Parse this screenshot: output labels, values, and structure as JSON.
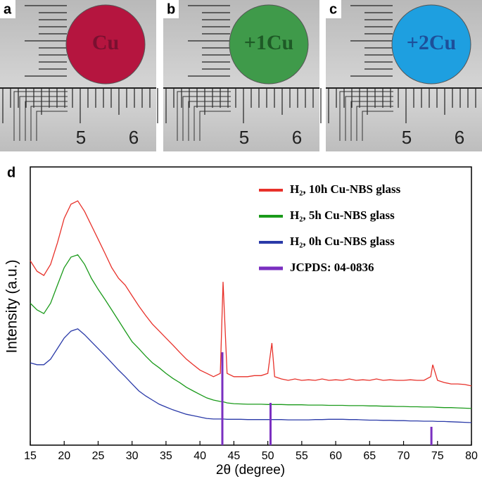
{
  "photos": [
    {
      "label": "a",
      "sample": "Cu",
      "ruler": [
        "5",
        "6"
      ],
      "color": "#b5153f",
      "text_color": "#7a1030"
    },
    {
      "label": "b",
      "sample": "+1Cu",
      "ruler": [
        "5",
        "6"
      ],
      "color": "#3f9a4a",
      "text_color": "#1e5a26"
    },
    {
      "label": "c",
      "sample": "+2Cu",
      "ruler": [
        "5",
        "6"
      ],
      "color": "#1e9fe0",
      "text_color": "#1d4f9a"
    }
  ],
  "chart_data": {
    "type": "line",
    "panel_label": "d",
    "xlabel": "2θ (degree)",
    "ylabel": "Intensity (a.u.)",
    "x": [
      15,
      16,
      17,
      18,
      19,
      20,
      21,
      22,
      23,
      24,
      25,
      26,
      27,
      28,
      29,
      30,
      31,
      32,
      33,
      34,
      35,
      36,
      37,
      38,
      39,
      40,
      41,
      42,
      43,
      43.4,
      44,
      45,
      46,
      47,
      48,
      49,
      50,
      50.6,
      51,
      52,
      53,
      54,
      55,
      56,
      57,
      58,
      59,
      60,
      61,
      62,
      63,
      64,
      65,
      66,
      67,
      68,
      69,
      70,
      71,
      72,
      73,
      74,
      74.3,
      75,
      76,
      77,
      78,
      79,
      80
    ],
    "series": [
      {
        "name": "H₂, 10h Cu-NBS glass",
        "color": "#e8312a",
        "values": [
          66.3,
          62.5,
          61,
          65,
          72.7,
          81.5,
          86.6,
          87.8,
          84,
          79,
          74,
          69,
          63.8,
          60,
          57.5,
          53.7,
          50,
          46.6,
          43.5,
          41,
          38.5,
          36,
          33.4,
          30.9,
          28.9,
          27,
          25.8,
          24.6,
          25.8,
          58.7,
          25.8,
          24.6,
          24.6,
          24.6,
          25,
          25,
          25.8,
          36.7,
          24.6,
          23.8,
          23.3,
          23.8,
          23.3,
          23.5,
          23.3,
          23.8,
          23.3,
          23.5,
          23.3,
          23.8,
          23.3,
          23.5,
          23.3,
          23.8,
          23.3,
          23.5,
          23.3,
          23.3,
          23.5,
          23.3,
          23.3,
          24.6,
          28.9,
          23.3,
          22.5,
          22,
          22,
          21.8,
          21.3
        ]
      },
      {
        "name": "H₂, 5h Cu-NBS glass",
        "color": "#1a9a1a",
        "values": [
          51,
          48.6,
          47.3,
          51,
          57.5,
          63.8,
          67.6,
          68.4,
          65,
          60,
          56,
          52.4,
          48.6,
          44.8,
          41,
          37.2,
          34.7,
          32,
          29.6,
          27.8,
          25.8,
          24,
          22.5,
          20.8,
          19.5,
          18.2,
          17,
          16.2,
          15.7,
          15.6,
          15.2,
          14.9,
          14.8,
          14.7,
          14.7,
          14.7,
          14.6,
          14.6,
          14.6,
          14.6,
          14.5,
          14.5,
          14.5,
          14.4,
          14.4,
          14.4,
          14.3,
          14.3,
          14.3,
          14.2,
          14.2,
          14.2,
          14.1,
          14.1,
          14,
          14,
          13.9,
          13.9,
          13.8,
          13.8,
          13.7,
          13.7,
          13.7,
          13.6,
          13.5,
          13.5,
          13.4,
          13.3,
          13.2
        ]
      },
      {
        "name": "H₂, 0h Cu-NBS glass",
        "color": "#2a3aa8",
        "values": [
          29.6,
          28.9,
          28.9,
          30.9,
          34.7,
          38.5,
          41,
          41.8,
          39.7,
          37.2,
          34.7,
          32.2,
          29.6,
          27,
          24.6,
          22,
          19.5,
          17.7,
          16.2,
          14.7,
          13.7,
          12.7,
          11.9,
          11.1,
          10.6,
          10.1,
          9.6,
          9.4,
          9.4,
          9.4,
          9.3,
          9.3,
          9.3,
          9.2,
          9.2,
          9.2,
          9.2,
          9.2,
          9.2,
          9.2,
          9.1,
          9.1,
          9.1,
          9.1,
          9.2,
          9.2,
          9.3,
          9.3,
          9.3,
          9.2,
          9.2,
          9.1,
          9,
          9,
          8.9,
          8.9,
          8.8,
          8.8,
          8.7,
          8.7,
          8.6,
          8.6,
          8.6,
          8.5,
          8.5,
          8.4,
          8.3,
          8.2,
          8.1
        ]
      },
      {
        "name": "JCPDS: 04-0836",
        "color": "#7a2fc0",
        "style": "stick",
        "x": [
          43.3,
          50.4,
          74.1
        ],
        "values": [
          33.4,
          15.2,
          6.6
        ]
      }
    ],
    "xlim": [
      15,
      80
    ],
    "xticks": [
      15,
      20,
      25,
      30,
      35,
      40,
      45,
      50,
      55,
      60,
      65,
      70,
      75,
      80
    ],
    "ylim": [
      0,
      100
    ]
  }
}
